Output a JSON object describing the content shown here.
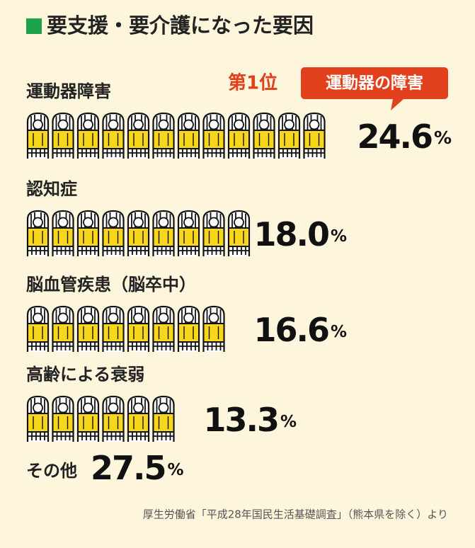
{
  "chart_data": {
    "type": "pictograph",
    "title": "要支援・要介護になった要因",
    "icon_value": 2,
    "badge": {
      "rank": "第1位",
      "label": "運動器の障害"
    },
    "categories": [
      "運動器障害",
      "認知症",
      "脳血管疾患（脳卒中）",
      "高齢による衰弱"
    ],
    "values": [
      24.6,
      18.0,
      16.6,
      13.3
    ],
    "value_labels": [
      "24.6%",
      "18.0%",
      "16.6%",
      "13.3%"
    ],
    "highlight_color": "#e2401c",
    "other": {
      "label": "その他",
      "value": 27.5,
      "value_label": "27.5%"
    },
    "source": "厚生労働省「平成28年国民生活基礎調査」（熊本県を除く）より"
  }
}
